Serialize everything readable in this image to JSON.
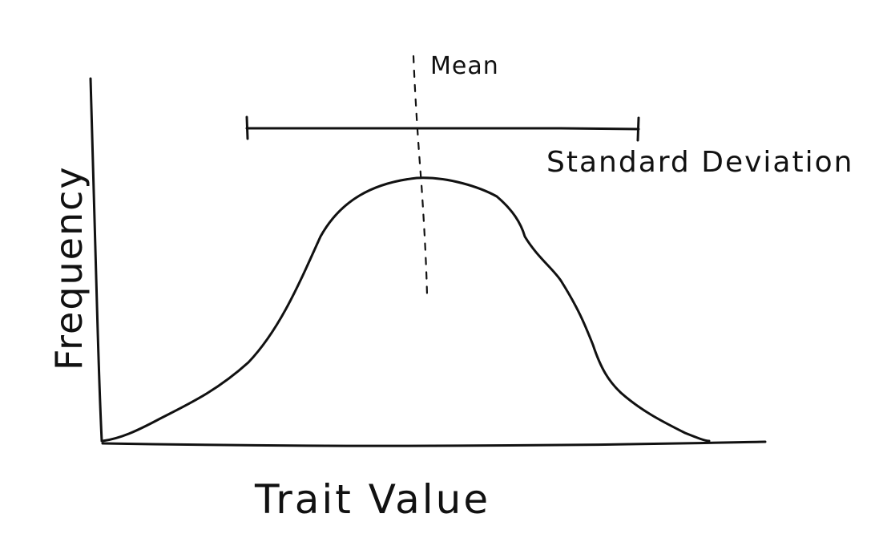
{
  "labels": {
    "x_axis": "Trait Value",
    "y_axis": "Frequency",
    "mean": "Mean",
    "spread": "Standard Deviation"
  },
  "colors": {
    "ink": "#111111",
    "background": "#ffffff"
  }
}
